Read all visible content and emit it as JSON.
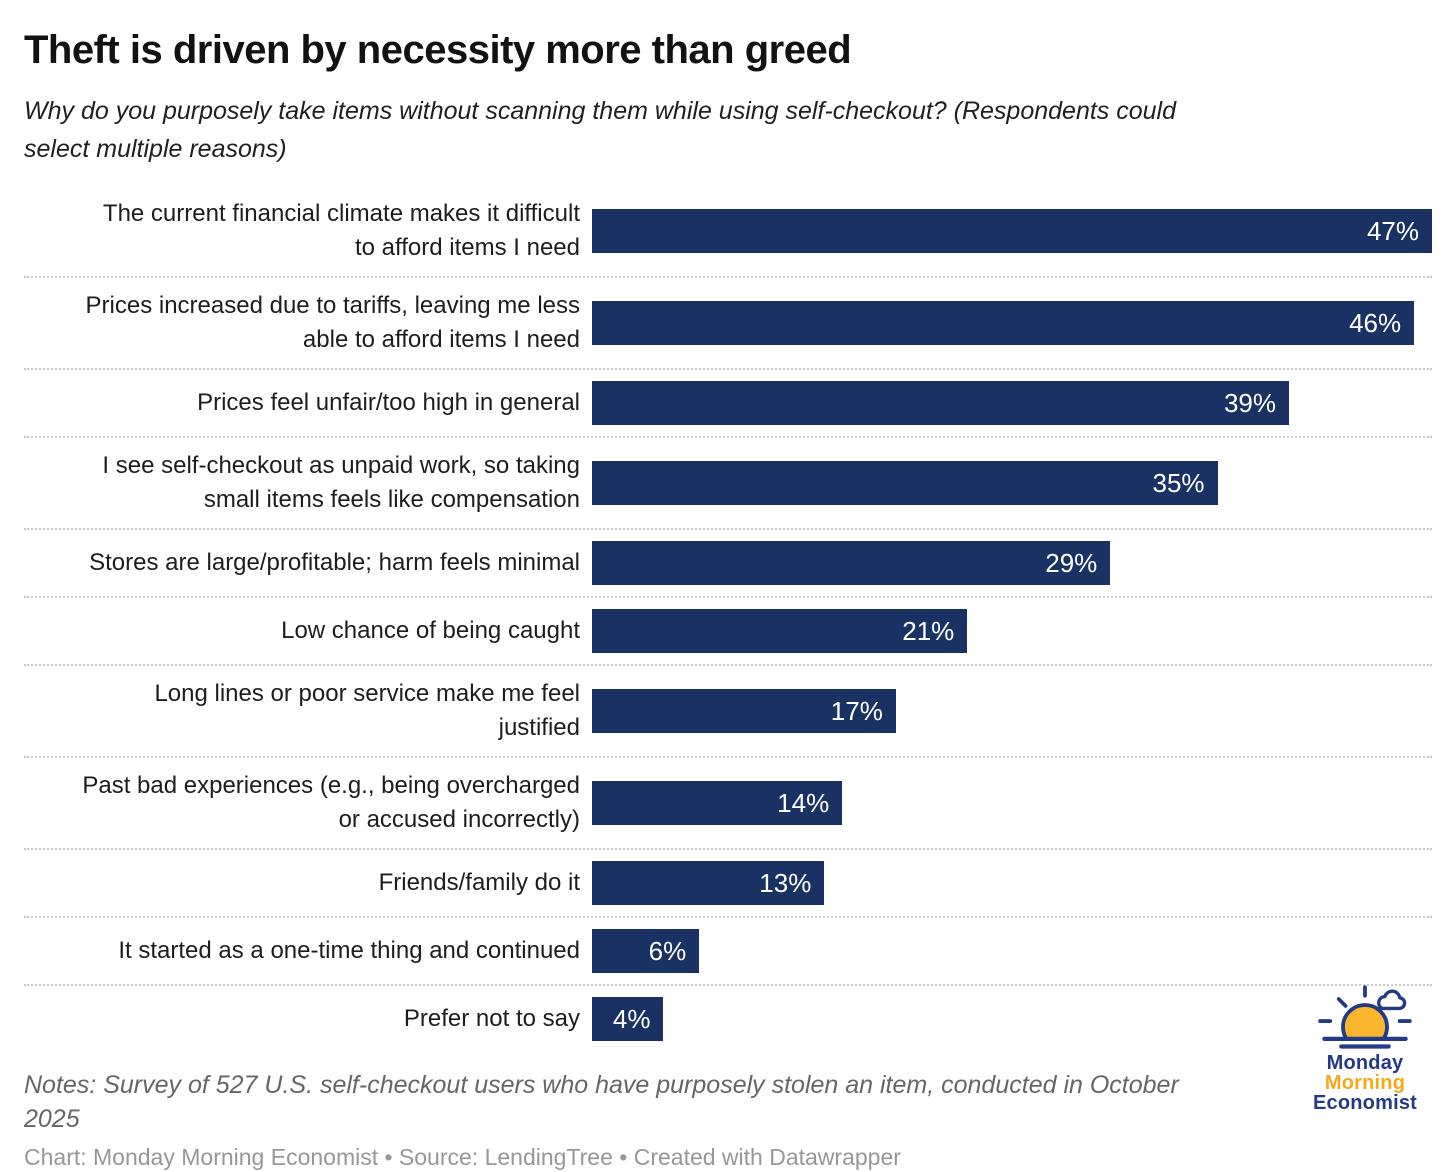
{
  "header": {
    "title": "Theft is driven by necessity more than greed",
    "subtitle": "Why do you purposely take items without scanning them while using self-checkout? (Respondents could\nselect multiple reasons)"
  },
  "chart_data": {
    "type": "bar",
    "orientation": "horizontal",
    "title": "Theft is driven by necessity more than greed",
    "subtitle": "Why do you purposely take items without scanning them while using self-checkout? (Respondents could select multiple reasons)",
    "value_suffix": "%",
    "axis_max": 47,
    "xlim": [
      0,
      47
    ],
    "grid": "dotted-row-separators",
    "legend": "none",
    "bar_color": "#1a3263",
    "value_label_color": "#ffffff",
    "categories": [
      "The current financial climate makes it difficult to afford items I need",
      "Prices increased due to tariffs, leaving me less able to afford items I need",
      "Prices feel unfair/too high in general",
      "I see self-checkout as unpaid work, so taking small items feels like compensation",
      "Stores are large/profitable; harm feels minimal",
      "Low chance of being caught",
      "Long lines or poor service make me feel justified",
      "Past bad experiences (e.g., being overcharged or accused incorrectly)",
      "Friends/family do it",
      "It started as a one-time thing and continued",
      "Prefer not to say"
    ],
    "values": [
      47,
      46,
      39,
      35,
      29,
      21,
      17,
      14,
      13,
      6,
      4
    ],
    "rows": [
      {
        "label": "The current financial climate makes it difficult\nto afford items I need",
        "value": 47,
        "value_label": "47%"
      },
      {
        "label": "Prices increased due to tariffs, leaving me less\nable to afford items I need",
        "value": 46,
        "value_label": "46%"
      },
      {
        "label": "Prices feel unfair/too high in general",
        "value": 39,
        "value_label": "39%"
      },
      {
        "label": "I see self-checkout as unpaid work, so taking\nsmall items feels like compensation",
        "value": 35,
        "value_label": "35%"
      },
      {
        "label": "Stores are large/profitable; harm feels minimal",
        "value": 29,
        "value_label": "29%"
      },
      {
        "label": "Low chance of being caught",
        "value": 21,
        "value_label": "21%"
      },
      {
        "label": "Long lines or poor service make me feel\njustified",
        "value": 17,
        "value_label": "17%"
      },
      {
        "label": "Past bad experiences (e.g., being overcharged\nor accused incorrectly)",
        "value": 14,
        "value_label": "14%"
      },
      {
        "label": "Friends/family do it",
        "value": 13,
        "value_label": "13%"
      },
      {
        "label": "It started as a one-time thing and continued",
        "value": 6,
        "value_label": "6%"
      },
      {
        "label": "Prefer not to say",
        "value": 4,
        "value_label": "4%"
      }
    ]
  },
  "footer": {
    "notes": "Notes: Survey of 527 U.S. self-checkout users who have purposely stolen an item, conducted in October 2025",
    "credit": "Chart: Monday Morning Economist • Source: LendingTree • Created with Datawrapper"
  },
  "logo": {
    "line1": "Monday",
    "line2": "Morning",
    "line3": "Economist",
    "navy": "#233a85",
    "yellow": "#f5a81c",
    "sun_fill": "#f9b52e",
    "icon": "sunrise-with-cloud-icon"
  }
}
